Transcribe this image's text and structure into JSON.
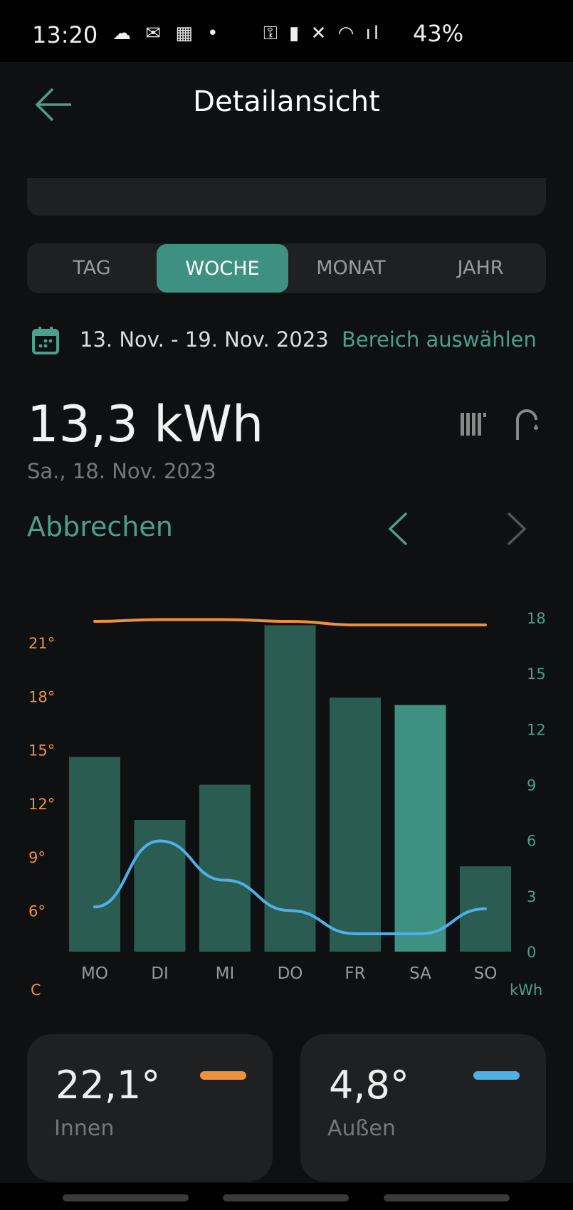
{
  "status_bar": {
    "time": "13:20",
    "battery": "43%",
    "left_icons": [
      "cloud-icon",
      "mail-icon",
      "gallery-icon",
      "dot-icon"
    ],
    "right_icons": [
      "vpn-key-icon",
      "battery-saver-icon",
      "mute-icon",
      "wifi-icon",
      "signal-icon"
    ]
  },
  "header": {
    "title": "Detailansicht"
  },
  "tabs": [
    {
      "label": "TAG"
    },
    {
      "label": "WOCHE",
      "active": true
    },
    {
      "label": "MONAT"
    },
    {
      "label": "JAHR"
    }
  ],
  "date_range": {
    "text": "13. Nov. - 19. Nov. 2023",
    "action": "Bereich auswählen"
  },
  "summary": {
    "value": "13,3 kWh",
    "date": "Sa., 18. Nov. 2023",
    "cancel": "Abbrechen"
  },
  "colors": {
    "bar": "#2a5c52",
    "bar_selected": "#3e9180",
    "accent": "#4aa08a",
    "indoor": "#f0903a",
    "outdoor": "#4fb0e6"
  },
  "chart_data": {
    "type": "bar",
    "categories": [
      "MO",
      "DI",
      "MI",
      "DO",
      "FR",
      "SA",
      "SO"
    ],
    "selected": "SA",
    "series": [
      {
        "type": "bar",
        "axis": "right",
        "values": [
          10.5,
          7.1,
          9.0,
          17.6,
          13.7,
          13.3,
          4.6
        ]
      },
      {
        "type": "line",
        "axis": "left",
        "color": "#f0903a",
        "values": [
          22.2,
          22.3,
          22.3,
          22.2,
          22.0,
          22.0,
          22.0
        ]
      },
      {
        "type": "line",
        "axis": "left",
        "color": "#4fb0e6",
        "values": [
          6.2,
          9.9,
          7.7,
          6.0,
          4.7,
          4.7,
          6.1
        ]
      }
    ],
    "left_axis": {
      "unit": "C",
      "ticks": [
        "6°",
        "9°",
        "12°",
        "15°",
        "18°",
        "21°"
      ],
      "tick_values": [
        6,
        9,
        12,
        15,
        18,
        21
      ],
      "ylim": [
        3.7,
        22.4
      ]
    },
    "right_axis": {
      "unit": "kWh",
      "ticks": [
        "0",
        "3",
        "6",
        "9",
        "12",
        "15",
        "18"
      ],
      "tick_values": [
        0,
        3,
        6,
        9,
        12,
        15,
        18
      ],
      "ylim": [
        0,
        18
      ]
    }
  },
  "cards": [
    {
      "value": "22,1°",
      "label": "Innen",
      "color": "#f0903a"
    },
    {
      "value": "4,8°",
      "label": "Außen",
      "color": "#4fb0e6"
    }
  ]
}
